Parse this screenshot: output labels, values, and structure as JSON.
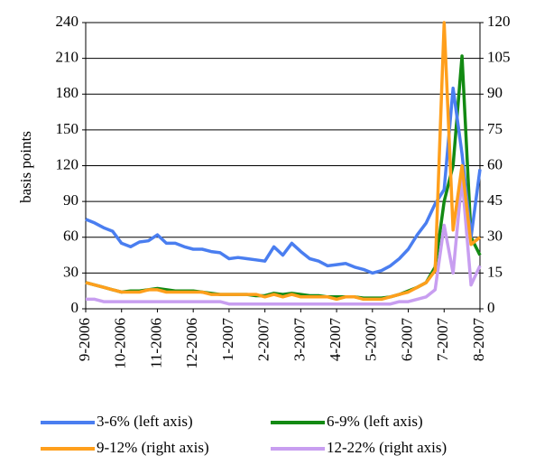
{
  "chart_data": {
    "type": "line",
    "y_label": "basis points",
    "categories": [
      "9-2006",
      null,
      null,
      null,
      "10-2006",
      null,
      null,
      null,
      "11-2006",
      null,
      null,
      null,
      "12-2006",
      null,
      null,
      null,
      "1-2007",
      null,
      null,
      null,
      "2-2007",
      null,
      null,
      null,
      "3-2007",
      null,
      null,
      null,
      "4-2007",
      null,
      null,
      null,
      "5-2007",
      null,
      null,
      null,
      "6-2007",
      null,
      null,
      null,
      "7-2007",
      null,
      null,
      null,
      "8-2007"
    ],
    "ylim": [
      0,
      240
    ],
    "yticks": [
      0,
      30,
      60,
      90,
      120,
      150,
      180,
      210,
      240
    ],
    "y2lim": [
      0,
      120
    ],
    "y2ticks": [
      0,
      15,
      30,
      45,
      60,
      75,
      90,
      105,
      120
    ],
    "grid": true,
    "series": [
      {
        "name": "3-6% (left axis)",
        "color": "#4a7ef0",
        "values": [
          75,
          72,
          68,
          65,
          55,
          52,
          56,
          57,
          62,
          55,
          55,
          52,
          50,
          50,
          48,
          47,
          42,
          43,
          42,
          41,
          40,
          52,
          45,
          55,
          48,
          42,
          40,
          36,
          37,
          38,
          35,
          33,
          30,
          32,
          36,
          42,
          50,
          62,
          72,
          88,
          100,
          185,
          130,
          60,
          117
        ]
      },
      {
        "name": "6-9% (left axis)",
        "color": "#138a13",
        "values": [
          22,
          20,
          18,
          16,
          14,
          15,
          15,
          16,
          17,
          16,
          15,
          15,
          15,
          14,
          13,
          12,
          12,
          12,
          12,
          11,
          11,
          13,
          12,
          13,
          12,
          11,
          11,
          10,
          10,
          10,
          10,
          9,
          9,
          9,
          10,
          12,
          15,
          18,
          22,
          35,
          90,
          120,
          212,
          60,
          45
        ]
      },
      {
        "name": "9-12% (right axis)",
        "color": "#ff9f1c",
        "axis": "y2",
        "values": [
          11,
          10,
          9,
          8,
          7,
          7,
          7,
          8,
          8,
          7,
          7,
          7,
          7,
          7,
          6,
          6,
          6,
          6,
          6,
          6,
          5,
          6,
          5,
          6,
          5,
          5,
          5,
          5,
          4,
          5,
          5,
          4,
          4,
          4,
          5,
          6,
          7,
          9,
          11,
          16,
          120,
          33,
          60,
          27,
          30
        ]
      },
      {
        "name": "12-22% (right axis)",
        "color": "#c89ef0",
        "axis": "y2",
        "values": [
          4,
          4,
          3,
          3,
          3,
          3,
          3,
          3,
          3,
          3,
          3,
          3,
          3,
          3,
          3,
          3,
          2,
          2,
          2,
          2,
          2,
          2,
          2,
          2,
          2,
          2,
          2,
          2,
          2,
          2,
          2,
          2,
          2,
          2,
          2,
          3,
          3,
          4,
          5,
          8,
          35,
          15,
          55,
          10,
          18
        ]
      }
    ]
  }
}
